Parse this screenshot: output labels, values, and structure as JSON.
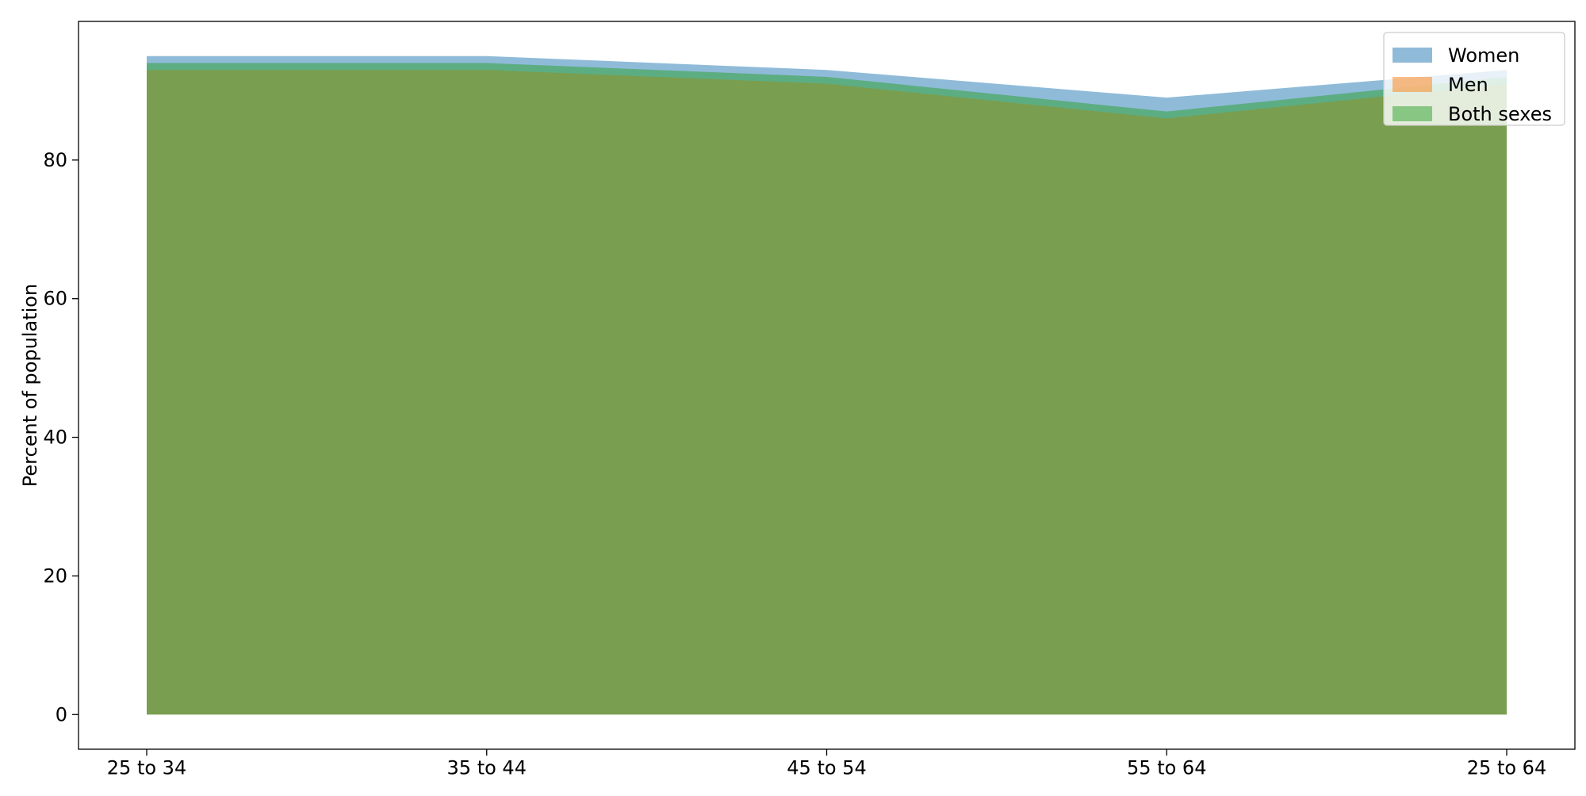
{
  "chart_data": {
    "type": "area",
    "title": "",
    "xlabel": "",
    "ylabel": "Percent of population",
    "categories": [
      "25 to 34",
      "35 to 44",
      "45 to 54",
      "55 to 64",
      "25 to 64"
    ],
    "ylim": [
      -5,
      100
    ],
    "yticks": [
      0,
      20,
      40,
      60,
      80
    ],
    "grid": false,
    "legend_position": "top-right",
    "series": [
      {
        "name": "Women",
        "values": [
          95,
          95,
          93,
          89,
          93
        ],
        "color": "#1f77b4",
        "alpha": 0.5
      },
      {
        "name": "Men",
        "values": [
          93,
          93,
          91,
          86,
          91
        ],
        "color": "#ff7f0e",
        "alpha": 0.5
      },
      {
        "name": "Both sexes",
        "values": [
          94,
          94,
          92,
          87,
          92
        ],
        "color": "#2ca02c",
        "alpha": 0.5
      }
    ]
  }
}
